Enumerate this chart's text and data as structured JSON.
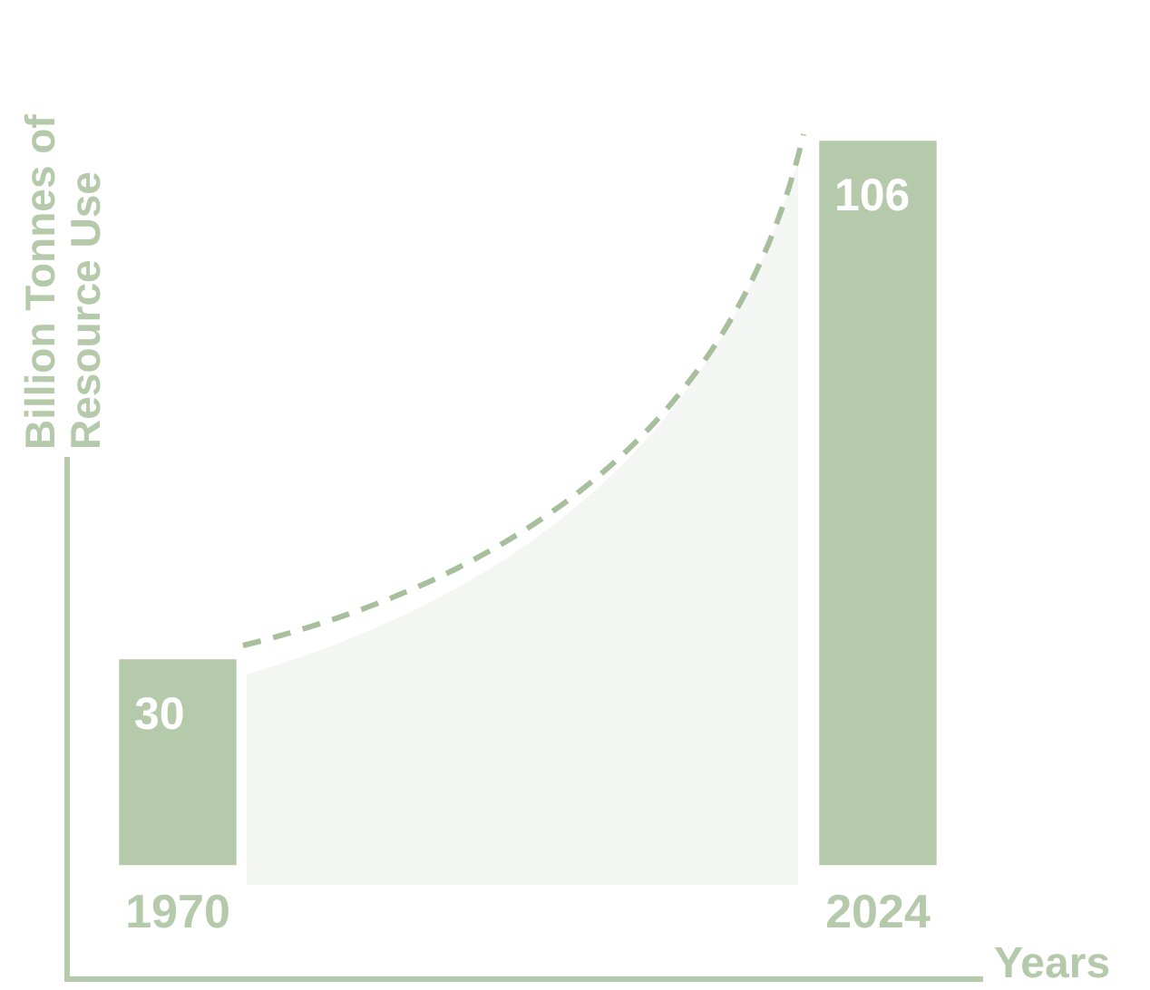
{
  "chart_data": {
    "type": "bar",
    "categories": [
      "1970",
      "2024"
    ],
    "values": [
      30,
      106
    ],
    "color": "#b5c9ab",
    "data_labels": true,
    "ylabel": "Billion Tonnes of Resource Use",
    "xlabel": "Years",
    "tick_labels": "x",
    "grid": false,
    "legend": false
  }
}
